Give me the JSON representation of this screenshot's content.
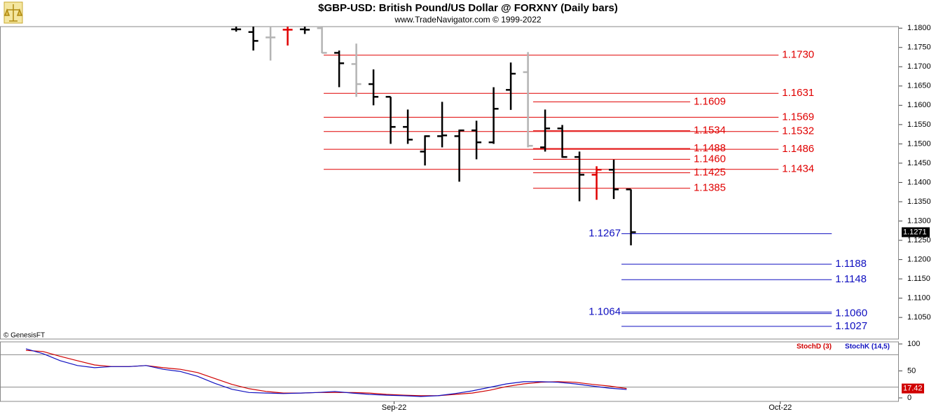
{
  "chart_data": {
    "type": "ohlc",
    "title": "$GBP-USD:  British Pound/US Dollar @ FORXNY  (Daily bars)",
    "subtitle": "www.TradeNavigator.com © 1999-2022",
    "source": "© GenesisFT",
    "xlim": [
      -13.76,
      38.61
    ],
    "xticks": [
      {
        "value": 9.2,
        "label": "Sep-22"
      },
      {
        "value": 31.7,
        "label": "Oct-22"
      }
    ],
    "ylim": [
      1.0994,
      1.1804
    ],
    "yticks": [
      {
        "value": 1.105,
        "label": "1.1050"
      },
      {
        "value": 1.11,
        "label": "1.1100"
      },
      {
        "value": 1.115,
        "label": "1.1150"
      },
      {
        "value": 1.12,
        "label": "1.1200"
      },
      {
        "value": 1.125,
        "label": "1.1250"
      },
      {
        "value": 1.13,
        "label": "1.1300"
      },
      {
        "value": 1.135,
        "label": "1.1350"
      },
      {
        "value": 1.14,
        "label": "1.1400"
      },
      {
        "value": 1.145,
        "label": "1.1450"
      },
      {
        "value": 1.15,
        "label": "1.1500"
      },
      {
        "value": 1.155,
        "label": "1.1550"
      },
      {
        "value": 1.16,
        "label": "1.1600"
      },
      {
        "value": 1.165,
        "label": "1.1650"
      },
      {
        "value": 1.17,
        "label": "1.1700"
      },
      {
        "value": 1.175,
        "label": "1.1750"
      },
      {
        "value": 1.18,
        "label": "1.1800"
      }
    ],
    "last_price": {
      "value": 1.1271,
      "label": "1.1271"
    },
    "bars": [
      {
        "open": 1.1797,
        "high": 1.1804,
        "low": 1.1791,
        "close": 1.1797,
        "color": "#000000"
      },
      {
        "open": 1.179,
        "high": 1.1804,
        "low": 1.1742,
        "close": 1.1767,
        "color": "#000000"
      },
      {
        "open": 1.1776,
        "high": 1.1804,
        "low": 1.1716,
        "close": 1.1776,
        "color": "#b4b4b4"
      },
      {
        "open": 1.1796,
        "high": 1.1804,
        "low": 1.1755,
        "close": 1.1796,
        "color": "#e00000"
      },
      {
        "open": 1.1797,
        "high": 1.1804,
        "low": 1.1785,
        "close": 1.1796,
        "color": "#000000"
      },
      {
        "open": 1.18,
        "high": 1.1804,
        "low": 1.1735,
        "close": 1.1736,
        "color": "#b4b4b4"
      },
      {
        "open": 1.1736,
        "high": 1.1742,
        "low": 1.1647,
        "close": 1.1709,
        "color": "#000000"
      },
      {
        "open": 1.1707,
        "high": 1.176,
        "low": 1.1622,
        "close": 1.1655,
        "color": "#b4b4b4"
      },
      {
        "open": 1.1655,
        "high": 1.1693,
        "low": 1.16,
        "close": 1.1622,
        "color": "#000000"
      },
      {
        "open": 1.1622,
        "high": 1.1622,
        "low": 1.15,
        "close": 1.1544,
        "color": "#000000"
      },
      {
        "open": 1.1544,
        "high": 1.1589,
        "low": 1.15,
        "close": 1.1511,
        "color": "#000000"
      },
      {
        "open": 1.148,
        "high": 1.1522,
        "low": 1.1444,
        "close": 1.152,
        "color": "#000000"
      },
      {
        "open": 1.152,
        "high": 1.1609,
        "low": 1.1491,
        "close": 1.1522,
        "color": "#000000"
      },
      {
        "open": 1.152,
        "high": 1.1537,
        "low": 1.1402,
        "close": 1.1535,
        "color": "#000000"
      },
      {
        "open": 1.1535,
        "high": 1.156,
        "low": 1.146,
        "close": 1.1504,
        "color": "#000000"
      },
      {
        "open": 1.1504,
        "high": 1.1647,
        "low": 1.15,
        "close": 1.1591,
        "color": "#000000"
      },
      {
        "open": 1.164,
        "high": 1.1711,
        "low": 1.1588,
        "close": 1.1682,
        "color": "#000000"
      },
      {
        "open": 1.1686,
        "high": 1.1738,
        "low": 1.1491,
        "close": 1.1495,
        "color": "#b4b4b4"
      },
      {
        "open": 1.1491,
        "high": 1.1589,
        "low": 1.148,
        "close": 1.154,
        "color": "#000000"
      },
      {
        "open": 1.154,
        "high": 1.1549,
        "low": 1.1464,
        "close": 1.1466,
        "color": "#000000"
      },
      {
        "open": 1.1466,
        "high": 1.148,
        "low": 1.1351,
        "close": 1.142,
        "color": "#000000"
      },
      {
        "open": 1.142,
        "high": 1.1442,
        "low": 1.1355,
        "close": 1.1433,
        "color": "#e00000"
      },
      {
        "open": 1.1433,
        "high": 1.1459,
        "low": 1.1357,
        "close": 1.1382,
        "color": "#000000"
      },
      {
        "open": 1.1382,
        "high": 1.1382,
        "low": 1.1237,
        "close": 1.1271,
        "color": "#000000"
      }
    ],
    "levels": [
      {
        "value": 1.173,
        "label": "1.1730",
        "color": "#e00000",
        "from": 5.1,
        "to": 31.6,
        "side": "right"
      },
      {
        "value": 1.1631,
        "label": "1.1631",
        "color": "#e00000",
        "from": 5.1,
        "to": 31.6,
        "side": "right"
      },
      {
        "value": 1.1609,
        "label": "1.1609",
        "color": "#e00000",
        "from": 17.3,
        "to": 26.45,
        "side": "right"
      },
      {
        "value": 1.1569,
        "label": "1.1569",
        "color": "#e00000",
        "from": 5.1,
        "to": 31.6,
        "side": "right"
      },
      {
        "value": 1.1534,
        "label": "1.1534",
        "color": "#e00000",
        "from": 17.3,
        "to": 26.45,
        "side": "right"
      },
      {
        "value": 1.1532,
        "label": "1.1532",
        "color": "#e00000",
        "from": 5.1,
        "to": 31.6,
        "side": "right"
      },
      {
        "value": 1.1488,
        "label": "1.1488",
        "color": "#e00000",
        "from": 17.3,
        "to": 26.45,
        "side": "right"
      },
      {
        "value": 1.1486,
        "label": "1.1486",
        "color": "#e00000",
        "from": 5.1,
        "to": 31.6,
        "side": "right"
      },
      {
        "value": 1.146,
        "label": "1.1460",
        "color": "#e00000",
        "from": 17.3,
        "to": 26.45,
        "side": "right"
      },
      {
        "value": 1.1434,
        "label": "1.1434",
        "color": "#e00000",
        "from": 5.1,
        "to": 31.6,
        "side": "right"
      },
      {
        "value": 1.1425,
        "label": "1.1425",
        "color": "#e00000",
        "from": 17.3,
        "to": 26.45,
        "side": "right"
      },
      {
        "value": 1.1385,
        "label": "1.1385",
        "color": "#e00000",
        "from": 17.3,
        "to": 26.45,
        "side": "right"
      },
      {
        "value": 1.1267,
        "label": "1.1267",
        "color": "#1010c0",
        "from": 22.45,
        "to": 34.7,
        "side": "left"
      },
      {
        "value": 1.1188,
        "label": "1.1188",
        "color": "#1010c0",
        "from": 22.45,
        "to": 34.7,
        "side": "right"
      },
      {
        "value": 1.1148,
        "label": "1.1148",
        "color": "#1010c0",
        "from": 22.45,
        "to": 34.7,
        "side": "right"
      },
      {
        "value": 1.1064,
        "label": "1.1064",
        "color": "#1010c0",
        "from": 22.45,
        "to": 34.7,
        "side": "left"
      },
      {
        "value": 1.106,
        "label": "1.1060",
        "color": "#1010c0",
        "from": 22.45,
        "to": 34.7,
        "side": "right"
      },
      {
        "value": 1.1027,
        "label": "1.1027",
        "color": "#1010c0",
        "from": 22.45,
        "to": 34.7,
        "side": "right"
      }
    ],
    "stoch": {
      "ylim": [
        -6.5,
        103.9
      ],
      "yticks": [
        0,
        50,
        100
      ],
      "levels": [
        80,
        20
      ],
      "x": [
        -12.25,
        -11.25,
        -10.25,
        -9.25,
        -8.25,
        -7.25,
        -6.25,
        -5.25,
        -4.25,
        -3.25,
        -2.25,
        -1.25,
        -0.25,
        0.75,
        1.75,
        2.75,
        3.75,
        4.75,
        5.75,
        6.75,
        7.75,
        8.75,
        9.75,
        10.75,
        11.75,
        12.75,
        13.75,
        14.75,
        15.75,
        16.75,
        17.75,
        18.75,
        19.75,
        20.75,
        21.75,
        22.75
      ],
      "last_label": 17.42,
      "series": [
        {
          "name": "StochD (3)",
          "color": "#d00000",
          "values": [
            88,
            86,
            77,
            69,
            61,
            58,
            58,
            60,
            56,
            53,
            47,
            36,
            25,
            17,
            12,
            9,
            9,
            10,
            10,
            10,
            9,
            6.5,
            5,
            4,
            4,
            6.5,
            9,
            14,
            21,
            26,
            29,
            30,
            29,
            25,
            22,
            17.42
          ]
        },
        {
          "name": "StochK (14,5)",
          "color": "#1010c0",
          "values": [
            91,
            82,
            69,
            60,
            56,
            58,
            58,
            60,
            53,
            49,
            40,
            27,
            16,
            10,
            9,
            8,
            9,
            10,
            12,
            9,
            6.5,
            5,
            4,
            2.6,
            4,
            8,
            13,
            19.5,
            26,
            30,
            30,
            29,
            26,
            22,
            18,
            15.6
          ]
        }
      ]
    }
  }
}
